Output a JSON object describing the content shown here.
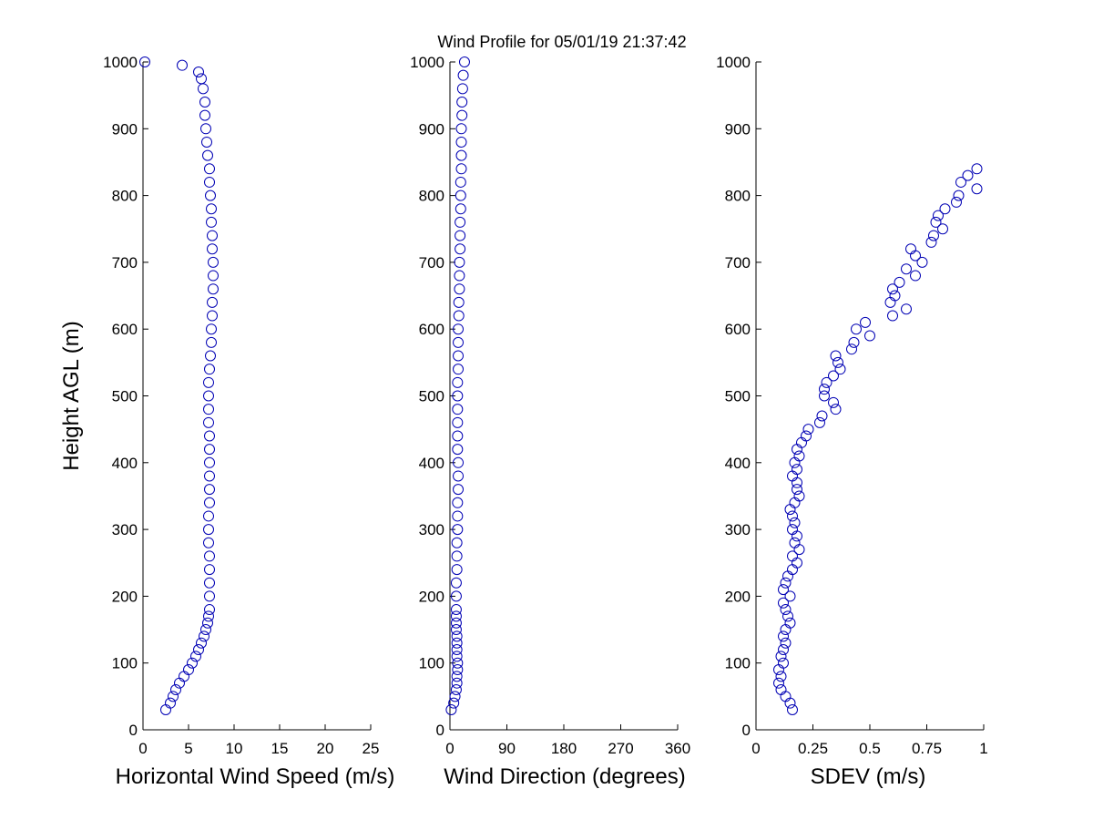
{
  "figure": {
    "title": "Wind Profile for  05/01/19 21:37:42"
  },
  "chart_data": [
    {
      "type": "scatter",
      "title": "Wind Profile for  05/01/19 21:37:42",
      "xlabel": "Horizontal Wind Speed (m/s)",
      "ylabel": "Height AGL (m)",
      "xlim": [
        0,
        25
      ],
      "ylim": [
        0,
        1000
      ],
      "xticks": [
        0,
        5,
        10,
        15,
        20,
        25
      ],
      "xtick_labels": [
        "0",
        "5",
        "10",
        "15",
        "20",
        "25"
      ],
      "yticks": [
        0,
        100,
        200,
        300,
        400,
        500,
        600,
        700,
        800,
        900,
        1000
      ],
      "ytick_labels": [
        "0",
        "100",
        "200",
        "300",
        "400",
        "500",
        "600",
        "700",
        "800",
        "900",
        "1000"
      ],
      "grid": false,
      "marker": "open-circle",
      "color": "#0000b4",
      "y": [
        30,
        40,
        50,
        60,
        70,
        80,
        90,
        100,
        110,
        120,
        130,
        140,
        150,
        160,
        170,
        180,
        200,
        220,
        240,
        260,
        280,
        300,
        320,
        340,
        360,
        380,
        400,
        420,
        440,
        460,
        480,
        500,
        520,
        540,
        560,
        580,
        600,
        620,
        640,
        660,
        680,
        700,
        720,
        740,
        760,
        780,
        800,
        820,
        840,
        860,
        880,
        900,
        920,
        940,
        960,
        975,
        985,
        995,
        1000
      ],
      "x": [
        2.5,
        3.0,
        3.3,
        3.6,
        4.0,
        4.5,
        5.0,
        5.4,
        5.8,
        6.1,
        6.4,
        6.7,
        6.9,
        7.1,
        7.2,
        7.3,
        7.3,
        7.3,
        7.3,
        7.3,
        7.2,
        7.2,
        7.2,
        7.3,
        7.3,
        7.3,
        7.3,
        7.3,
        7.3,
        7.2,
        7.2,
        7.2,
        7.2,
        7.3,
        7.4,
        7.5,
        7.5,
        7.6,
        7.6,
        7.7,
        7.7,
        7.7,
        7.6,
        7.6,
        7.5,
        7.5,
        7.4,
        7.3,
        7.3,
        7.1,
        7.0,
        6.9,
        6.8,
        6.8,
        6.6,
        6.4,
        6.1,
        4.3,
        0.2
      ]
    },
    {
      "type": "scatter",
      "xlabel": "Wind Direction (degrees)",
      "xlim": [
        0,
        360
      ],
      "ylim": [
        0,
        1000
      ],
      "xticks": [
        0,
        90,
        180,
        270,
        360
      ],
      "xtick_labels": [
        "0",
        "90",
        "180",
        "270",
        "360"
      ],
      "yticks": [
        0,
        100,
        200,
        300,
        400,
        500,
        600,
        700,
        800,
        900,
        1000
      ],
      "ytick_labels": [
        "0",
        "100",
        "200",
        "300",
        "400",
        "500",
        "600",
        "700",
        "800",
        "900",
        "1000"
      ],
      "grid": false,
      "marker": "open-circle",
      "color": "#0000b4",
      "y": [
        30,
        40,
        50,
        60,
        70,
        80,
        90,
        100,
        110,
        120,
        130,
        140,
        150,
        160,
        170,
        180,
        200,
        220,
        240,
        260,
        280,
        300,
        320,
        340,
        360,
        380,
        400,
        420,
        440,
        460,
        480,
        500,
        520,
        540,
        560,
        580,
        600,
        620,
        640,
        660,
        680,
        700,
        720,
        740,
        760,
        780,
        800,
        820,
        840,
        860,
        880,
        900,
        920,
        940,
        960,
        980,
        1000
      ],
      "x": [
        2,
        6,
        8,
        10,
        11,
        11,
        12,
        12,
        11,
        11,
        11,
        11,
        10,
        10,
        10,
        10,
        10,
        10,
        11,
        11,
        11,
        12,
        12,
        12,
        13,
        13,
        13,
        12,
        12,
        12,
        12,
        12,
        12,
        13,
        13,
        13,
        13,
        14,
        14,
        15,
        15,
        15,
        16,
        16,
        16,
        17,
        17,
        17,
        18,
        18,
        18,
        18,
        19,
        19,
        20,
        21,
        23
      ]
    },
    {
      "type": "scatter",
      "xlabel": "SDEV  (m/s)",
      "xlim": [
        0,
        1
      ],
      "ylim": [
        0,
        1000
      ],
      "xticks": [
        0,
        0.25,
        0.5,
        0.75,
        1
      ],
      "xtick_labels": [
        "0",
        "0.25",
        "0.5",
        "0.75",
        "1"
      ],
      "yticks": [
        0,
        100,
        200,
        300,
        400,
        500,
        600,
        700,
        800,
        900,
        1000
      ],
      "ytick_labels": [
        "0",
        "100",
        "200",
        "300",
        "400",
        "500",
        "600",
        "700",
        "800",
        "900",
        "1000"
      ],
      "grid": false,
      "marker": "open-circle",
      "color": "#0000b4",
      "y": [
        30,
        40,
        50,
        60,
        70,
        80,
        90,
        100,
        110,
        120,
        130,
        140,
        150,
        160,
        170,
        180,
        190,
        200,
        210,
        220,
        230,
        240,
        250,
        260,
        270,
        280,
        290,
        300,
        310,
        320,
        330,
        340,
        350,
        360,
        370,
        380,
        390,
        400,
        410,
        420,
        430,
        440,
        450,
        460,
        470,
        480,
        490,
        500,
        510,
        520,
        530,
        540,
        550,
        560,
        570,
        580,
        590,
        600,
        610,
        620,
        630,
        640,
        650,
        660,
        670,
        680,
        690,
        700,
        710,
        720,
        730,
        740,
        750,
        760,
        770,
        780,
        790,
        800,
        810,
        820,
        830,
        840
      ],
      "x": [
        0.16,
        0.15,
        0.13,
        0.11,
        0.1,
        0.11,
        0.1,
        0.12,
        0.11,
        0.12,
        0.13,
        0.12,
        0.13,
        0.15,
        0.14,
        0.13,
        0.12,
        0.15,
        0.12,
        0.13,
        0.14,
        0.16,
        0.18,
        0.16,
        0.19,
        0.17,
        0.18,
        0.16,
        0.17,
        0.16,
        0.15,
        0.17,
        0.19,
        0.18,
        0.18,
        0.16,
        0.18,
        0.17,
        0.19,
        0.18,
        0.2,
        0.22,
        0.23,
        0.28,
        0.29,
        0.35,
        0.34,
        0.3,
        0.3,
        0.31,
        0.34,
        0.37,
        0.36,
        0.35,
        0.42,
        0.43,
        0.5,
        0.44,
        0.48,
        0.6,
        0.66,
        0.59,
        0.61,
        0.6,
        0.63,
        0.7,
        0.66,
        0.73,
        0.7,
        0.68,
        0.77,
        0.78,
        0.82,
        0.79,
        0.8,
        0.83,
        0.88,
        0.89,
        0.97,
        0.9,
        0.93,
        0.97
      ]
    }
  ]
}
